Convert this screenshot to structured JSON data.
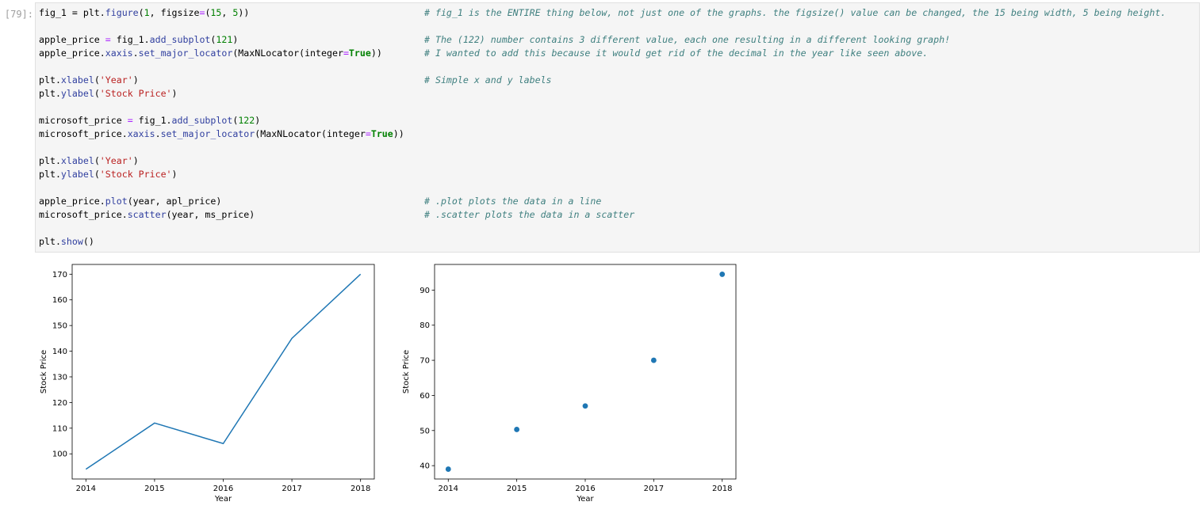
{
  "cell": {
    "prompt": "[79]:"
  },
  "code_lines": [
    {
      "tokens": [
        [
          "",
          "fig_1 = plt."
        ],
        [
          "pu",
          "figure"
        ],
        [
          "",
          "("
        ],
        [
          "nu",
          "1"
        ],
        [
          "",
          ", figsize"
        ],
        [
          "op",
          "="
        ],
        [
          "",
          "("
        ],
        [
          "nu",
          "15"
        ],
        [
          "",
          ", "
        ],
        [
          "nu",
          "5"
        ],
        [
          "",
          "))"
        ]
      ],
      "comment": "# fig_1 is the ENTIRE thing below, not just one of the graphs. the figsize() value can be changed, the 15 being width, 5 being height."
    },
    {
      "tokens": [],
      "comment": ""
    },
    {
      "tokens": [
        [
          "",
          "apple_price "
        ],
        [
          "op",
          "="
        ],
        [
          "",
          " fig_1."
        ],
        [
          "pu",
          "add_subplot"
        ],
        [
          "",
          "("
        ],
        [
          "nu",
          "121"
        ],
        [
          "",
          ")"
        ]
      ],
      "comment": "# The (122) number contains 3 different value, each one resulting in a different looking graph!"
    },
    {
      "tokens": [
        [
          "",
          "apple_price."
        ],
        [
          "pu",
          "xaxis"
        ],
        [
          "",
          "."
        ],
        [
          "pu",
          "set_major_locator"
        ],
        [
          "",
          "(MaxNLocator(integer"
        ],
        [
          "op",
          "="
        ],
        [
          "kw",
          "True"
        ],
        [
          "",
          "))"
        ]
      ],
      "comment": "# I wanted to add this because it would get rid of the decimal in the year like seen above."
    },
    {
      "tokens": [],
      "comment": ""
    },
    {
      "tokens": [
        [
          "",
          "plt."
        ],
        [
          "pu",
          "xlabel"
        ],
        [
          "",
          "("
        ],
        [
          "st",
          "'Year'"
        ],
        [
          "",
          ")"
        ]
      ],
      "comment": "# Simple x and y labels"
    },
    {
      "tokens": [
        [
          "",
          "plt."
        ],
        [
          "pu",
          "ylabel"
        ],
        [
          "",
          "("
        ],
        [
          "st",
          "'Stock Price'"
        ],
        [
          "",
          ")"
        ]
      ],
      "comment": ""
    },
    {
      "tokens": [],
      "comment": ""
    },
    {
      "tokens": [
        [
          "",
          "microsoft_price "
        ],
        [
          "op",
          "="
        ],
        [
          "",
          " fig_1."
        ],
        [
          "pu",
          "add_subplot"
        ],
        [
          "",
          "("
        ],
        [
          "nu",
          "122"
        ],
        [
          "",
          ")"
        ]
      ],
      "comment": ""
    },
    {
      "tokens": [
        [
          "",
          "microsoft_price."
        ],
        [
          "pu",
          "xaxis"
        ],
        [
          "",
          "."
        ],
        [
          "pu",
          "set_major_locator"
        ],
        [
          "",
          "(MaxNLocator(integer"
        ],
        [
          "op",
          "="
        ],
        [
          "kw",
          "True"
        ],
        [
          "",
          "))"
        ]
      ],
      "comment": ""
    },
    {
      "tokens": [],
      "comment": ""
    },
    {
      "tokens": [
        [
          "",
          "plt."
        ],
        [
          "pu",
          "xlabel"
        ],
        [
          "",
          "("
        ],
        [
          "st",
          "'Year'"
        ],
        [
          "",
          ")"
        ]
      ],
      "comment": ""
    },
    {
      "tokens": [
        [
          "",
          "plt."
        ],
        [
          "pu",
          "ylabel"
        ],
        [
          "",
          "("
        ],
        [
          "st",
          "'Stock Price'"
        ],
        [
          "",
          ")"
        ]
      ],
      "comment": ""
    },
    {
      "tokens": [],
      "comment": ""
    },
    {
      "tokens": [
        [
          "",
          "apple_price."
        ],
        [
          "pu",
          "plot"
        ],
        [
          "",
          "(year, apl_price)"
        ]
      ],
      "comment": "# .plot plots the data in a line"
    },
    {
      "tokens": [
        [
          "",
          "microsoft_price."
        ],
        [
          "pu",
          "scatter"
        ],
        [
          "",
          "(year, ms_price)"
        ]
      ],
      "comment": "# .scatter plots the data in a scatter"
    },
    {
      "tokens": [],
      "comment": ""
    },
    {
      "tokens": [
        [
          "",
          "plt."
        ],
        [
          "pu",
          "show"
        ],
        [
          "",
          "()"
        ]
      ],
      "comment": ""
    }
  ],
  "colors": {
    "series": "#1f77b4",
    "axes": "#000000"
  },
  "chart_data": [
    {
      "type": "line",
      "x": [
        2014,
        2015,
        2016,
        2017,
        2018
      ],
      "y": [
        94,
        112,
        104,
        145,
        170
      ],
      "xlabel": "Year",
      "ylabel": "Stock Price",
      "xticks": [
        2014,
        2015,
        2016,
        2017,
        2018
      ],
      "yticks": [
        100,
        110,
        120,
        130,
        140,
        150,
        160,
        170
      ],
      "xlim": [
        2013.8,
        2018.2
      ],
      "ylim": [
        90.2,
        173.8
      ],
      "grid": false
    },
    {
      "type": "scatter",
      "x": [
        2014,
        2015,
        2016,
        2017,
        2018
      ],
      "y": [
        39,
        50.3,
        57,
        70,
        94.5
      ],
      "xlabel": "Year",
      "ylabel": "Stock Price",
      "xticks": [
        2014,
        2015,
        2016,
        2017,
        2018
      ],
      "yticks": [
        40,
        50,
        60,
        70,
        80,
        90
      ],
      "xlim": [
        2013.8,
        2018.2
      ],
      "ylim": [
        36.2,
        97.3
      ],
      "grid": false
    }
  ]
}
